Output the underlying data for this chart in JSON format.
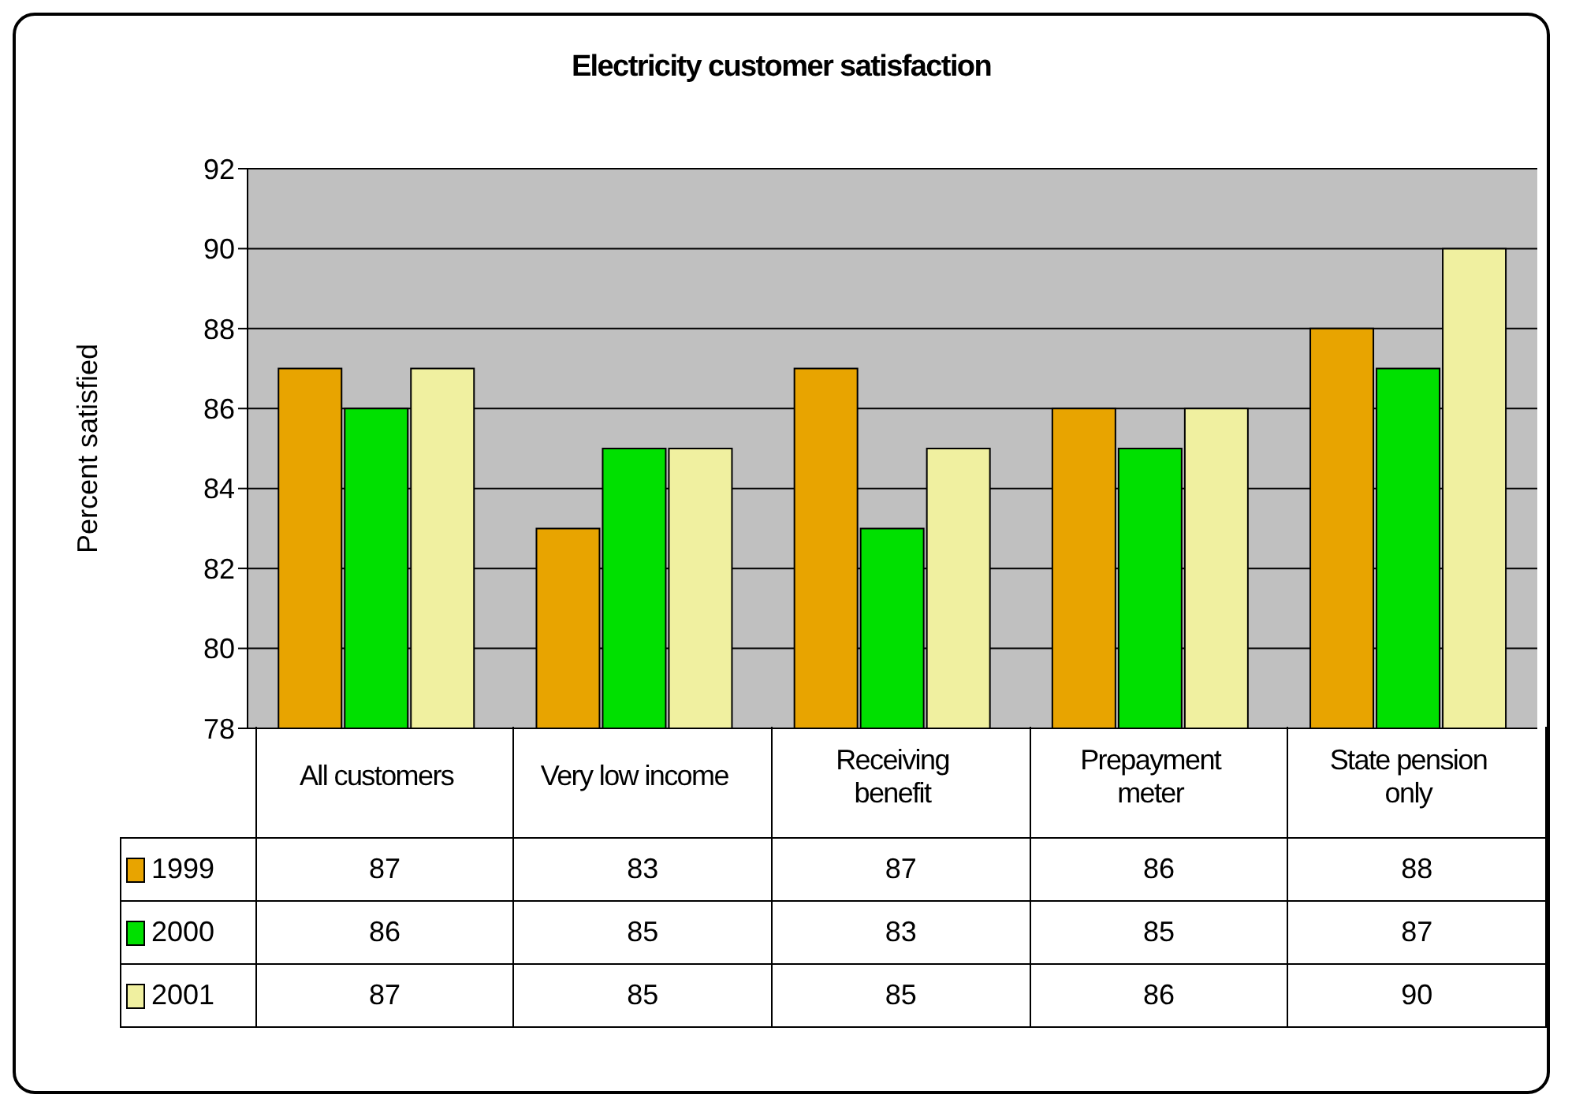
{
  "chart_data": {
    "type": "bar",
    "title": "Electricity customer satisfaction",
    "ylabel": "Percent satisfied",
    "categories": [
      "All customers",
      "Very low income",
      "Receiving benefit",
      "Prepayment meter",
      "State pension only"
    ],
    "series": [
      {
        "name": "1999",
        "color": "#e8a400",
        "values": [
          87,
          83,
          87,
          86,
          88
        ]
      },
      {
        "name": "2000",
        "color": "#00e000",
        "values": [
          86,
          85,
          83,
          85,
          87
        ]
      },
      {
        "name": "2001",
        "color": "#f0f0a0",
        "values": [
          87,
          85,
          85,
          86,
          90
        ]
      }
    ],
    "ylim": [
      78,
      92
    ],
    "yticks": [
      78,
      80,
      82,
      84,
      86,
      88,
      90,
      92
    ],
    "grid": "y",
    "legend": "bottom",
    "data_labels": true
  }
}
